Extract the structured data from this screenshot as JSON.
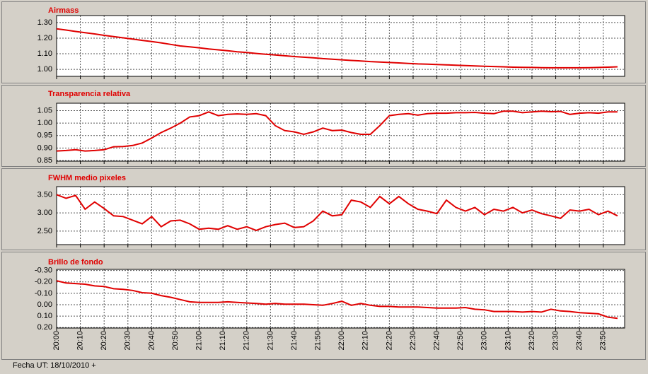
{
  "chart_data": [
    {
      "type": "line",
      "title": "Airmass",
      "x": [
        "20:00",
        "20:04",
        "20:08",
        "20:12",
        "20:16",
        "20:20",
        "20:24",
        "20:28",
        "20:32",
        "20:36",
        "20:40",
        "20:44",
        "20:48",
        "20:52",
        "20:56",
        "21:00",
        "21:04",
        "21:08",
        "21:12",
        "21:16",
        "21:20",
        "21:24",
        "21:28",
        "21:32",
        "21:36",
        "21:40",
        "21:44",
        "21:48",
        "21:52",
        "21:56",
        "22:00",
        "22:04",
        "22:08",
        "22:12",
        "22:16",
        "22:20",
        "22:24",
        "22:28",
        "22:32",
        "22:36",
        "22:40",
        "22:44",
        "22:48",
        "22:52",
        "22:56",
        "23:00",
        "23:04",
        "23:08",
        "23:12",
        "23:16",
        "23:20",
        "23:24",
        "23:28",
        "23:32",
        "23:36",
        "23:40",
        "23:44",
        "23:48",
        "23:52",
        "23:56"
      ],
      "series": [
        {
          "name": "Airmass",
          "color": "#e00000",
          "values": [
            1.26,
            1.252,
            1.243,
            1.235,
            1.227,
            1.218,
            1.21,
            1.202,
            1.194,
            1.186,
            1.178,
            1.17,
            1.16,
            1.15,
            1.144,
            1.138,
            1.131,
            1.125,
            1.119,
            1.113,
            1.108,
            1.102,
            1.097,
            1.092,
            1.087,
            1.082,
            1.078,
            1.074,
            1.069,
            1.065,
            1.061,
            1.057,
            1.054,
            1.05,
            1.047,
            1.044,
            1.041,
            1.038,
            1.035,
            1.033,
            1.031,
            1.029,
            1.026,
            1.024,
            1.022,
            1.02,
            1.018,
            1.016,
            1.014,
            1.013,
            1.012,
            1.011,
            1.01,
            1.01,
            1.01,
            1.01,
            1.011,
            1.012,
            1.014,
            1.016
          ]
        }
      ],
      "xlim": [
        "20:00",
        "23:59"
      ],
      "ylim": [
        0.955,
        1.345
      ],
      "yticks": [
        {
          "value": 1.0,
          "label": "1.00"
        },
        {
          "value": 1.1,
          "label": "1.10"
        },
        {
          "value": 1.2,
          "label": "1.20"
        },
        {
          "value": 1.3,
          "label": "1.30"
        }
      ],
      "grid": true
    },
    {
      "type": "line",
      "title": "Transparencia relativa",
      "x": [
        "20:00",
        "20:04",
        "20:08",
        "20:12",
        "20:16",
        "20:20",
        "20:24",
        "20:28",
        "20:32",
        "20:36",
        "20:40",
        "20:44",
        "20:48",
        "20:52",
        "20:56",
        "21:00",
        "21:04",
        "21:08",
        "21:12",
        "21:16",
        "21:20",
        "21:24",
        "21:28",
        "21:32",
        "21:36",
        "21:40",
        "21:44",
        "21:48",
        "21:52",
        "21:56",
        "22:00",
        "22:04",
        "22:08",
        "22:12",
        "22:16",
        "22:20",
        "22:24",
        "22:28",
        "22:32",
        "22:36",
        "22:40",
        "22:44",
        "22:48",
        "22:52",
        "22:56",
        "23:00",
        "23:04",
        "23:08",
        "23:12",
        "23:16",
        "23:20",
        "23:24",
        "23:28",
        "23:32",
        "23:36",
        "23:40",
        "23:44",
        "23:48",
        "23:52",
        "23:56"
      ],
      "series": [
        {
          "name": "Transparencia relativa",
          "color": "#e00000",
          "values": [
            0.888,
            0.89,
            0.893,
            0.888,
            0.89,
            0.893,
            0.905,
            0.906,
            0.91,
            0.92,
            0.94,
            0.962,
            0.98,
            1.0,
            1.025,
            1.03,
            1.045,
            1.03,
            1.035,
            1.037,
            1.035,
            1.038,
            1.03,
            0.99,
            0.97,
            0.965,
            0.955,
            0.965,
            0.98,
            0.97,
            0.972,
            0.962,
            0.955,
            0.955,
            0.99,
            1.03,
            1.035,
            1.038,
            1.032,
            1.038,
            1.04,
            1.04,
            1.042,
            1.042,
            1.043,
            1.04,
            1.038,
            1.048,
            1.048,
            1.042,
            1.045,
            1.048,
            1.046,
            1.047,
            1.035,
            1.04,
            1.042,
            1.04,
            1.045,
            1.045
          ]
        }
      ],
      "xlim": [
        "20:00",
        "23:59"
      ],
      "ylim": [
        0.847,
        1.08
      ],
      "yticks": [
        0.85,
        {
          "value": 0.9,
          "label": "0.90"
        },
        0.95,
        {
          "value": 1.0,
          "label": "1.00"
        },
        1.05
      ],
      "grid": true
    },
    {
      "type": "line",
      "title": "FWHM medio pixeles",
      "x": [
        "20:00",
        "20:04",
        "20:08",
        "20:12",
        "20:16",
        "20:20",
        "20:24",
        "20:28",
        "20:32",
        "20:36",
        "20:40",
        "20:44",
        "20:48",
        "20:52",
        "20:56",
        "21:00",
        "21:04",
        "21:08",
        "21:12",
        "21:16",
        "21:20",
        "21:24",
        "21:28",
        "21:32",
        "21:36",
        "21:40",
        "21:44",
        "21:48",
        "21:52",
        "21:56",
        "22:00",
        "22:04",
        "22:08",
        "22:12",
        "22:16",
        "22:20",
        "22:24",
        "22:28",
        "22:32",
        "22:36",
        "22:40",
        "22:44",
        "22:48",
        "22:52",
        "22:56",
        "23:00",
        "23:04",
        "23:08",
        "23:12",
        "23:16",
        "23:20",
        "23:24",
        "23:28",
        "23:32",
        "23:36",
        "23:40",
        "23:44",
        "23:48",
        "23:52",
        "23:56"
      ],
      "series": [
        {
          "name": "FWHM medio pixeles",
          "color": "#e00000",
          "values": [
            3.5,
            3.4,
            3.48,
            3.1,
            3.3,
            3.12,
            2.92,
            2.9,
            2.8,
            2.7,
            2.9,
            2.62,
            2.78,
            2.8,
            2.7,
            2.55,
            2.58,
            2.55,
            2.65,
            2.55,
            2.62,
            2.52,
            2.62,
            2.68,
            2.72,
            2.6,
            2.62,
            2.78,
            3.05,
            2.92,
            2.95,
            3.35,
            3.3,
            3.15,
            3.45,
            3.25,
            3.45,
            3.25,
            3.1,
            3.05,
            2.98,
            3.35,
            3.15,
            3.05,
            3.15,
            2.95,
            3.1,
            3.05,
            3.15,
            3.0,
            3.08,
            2.98,
            2.92,
            2.85,
            3.08,
            3.05,
            3.1,
            2.95,
            3.05,
            2.92
          ]
        }
      ],
      "xlim": [
        "20:00",
        "23:59"
      ],
      "ylim": [
        2.13,
        3.72
      ],
      "yticks": [
        {
          "value": 2.5,
          "label": "2.50"
        },
        {
          "value": 3.0,
          "label": "3.00"
        },
        {
          "value": 3.5,
          "label": "3.50"
        }
      ],
      "grid": true
    },
    {
      "type": "line",
      "title": "Brillo de fondo",
      "x": [
        "20:00",
        "20:04",
        "20:08",
        "20:12",
        "20:16",
        "20:20",
        "20:24",
        "20:28",
        "20:32",
        "20:36",
        "20:40",
        "20:44",
        "20:48",
        "20:52",
        "20:56",
        "21:00",
        "21:04",
        "21:08",
        "21:12",
        "21:16",
        "21:20",
        "21:24",
        "21:28",
        "21:32",
        "21:36",
        "21:40",
        "21:44",
        "21:48",
        "21:52",
        "21:56",
        "22:00",
        "22:04",
        "22:08",
        "22:12",
        "22:16",
        "22:20",
        "22:24",
        "22:28",
        "22:32",
        "22:36",
        "22:40",
        "22:44",
        "22:48",
        "22:52",
        "22:56",
        "23:00",
        "23:04",
        "23:08",
        "23:12",
        "23:16",
        "23:20",
        "23:24",
        "23:28",
        "23:32",
        "23:36",
        "23:40",
        "23:44",
        "23:48",
        "23:52",
        "23:56"
      ],
      "series": [
        {
          "name": "Brillo de fondo",
          "color": "#e00000",
          "values": [
            -0.21,
            -0.19,
            -0.185,
            -0.18,
            -0.165,
            -0.16,
            -0.14,
            -0.135,
            -0.125,
            -0.105,
            -0.1,
            -0.08,
            -0.065,
            -0.045,
            -0.025,
            -0.02,
            -0.02,
            -0.02,
            -0.025,
            -0.02,
            -0.015,
            -0.01,
            -0.005,
            -0.01,
            -0.005,
            -0.005,
            -0.005,
            0.0,
            0.005,
            -0.01,
            -0.03,
            0.005,
            -0.01,
            0.005,
            0.015,
            0.015,
            0.02,
            0.02,
            0.02,
            0.025,
            0.03,
            0.03,
            0.03,
            0.025,
            0.04,
            0.045,
            0.06,
            0.06,
            0.06,
            0.065,
            0.06,
            0.065,
            0.04,
            0.055,
            0.06,
            0.07,
            0.075,
            0.08,
            0.11,
            0.12
          ]
        }
      ],
      "xlim": [
        "20:00",
        "23:59"
      ],
      "xticks": [
        "20:00",
        "20:10",
        "20:20",
        "20:30",
        "20:40",
        "20:50",
        "21:00",
        "21:10",
        "21:20",
        "21:30",
        "21:40",
        "21:50",
        "22:00",
        "22:10",
        "22:20",
        "22:30",
        "22:40",
        "22:50",
        "23:00",
        "23:10",
        "23:20",
        "23:30",
        "23:40",
        "23:50"
      ],
      "ylim": [
        0.205,
        -0.31
      ],
      "yticks": [
        {
          "value": 0.2,
          "label": "0.20"
        },
        {
          "value": 0.1,
          "label": "0.10"
        },
        {
          "value": 0.0,
          "label": "0.00"
        },
        {
          "value": -0.1,
          "label": "-0.10"
        },
        {
          "value": -0.2,
          "label": "-0.20"
        },
        {
          "value": -0.3,
          "label": "-0.30"
        }
      ],
      "grid": true
    }
  ],
  "footer": "Fecha UT: 18/10/2010 +"
}
